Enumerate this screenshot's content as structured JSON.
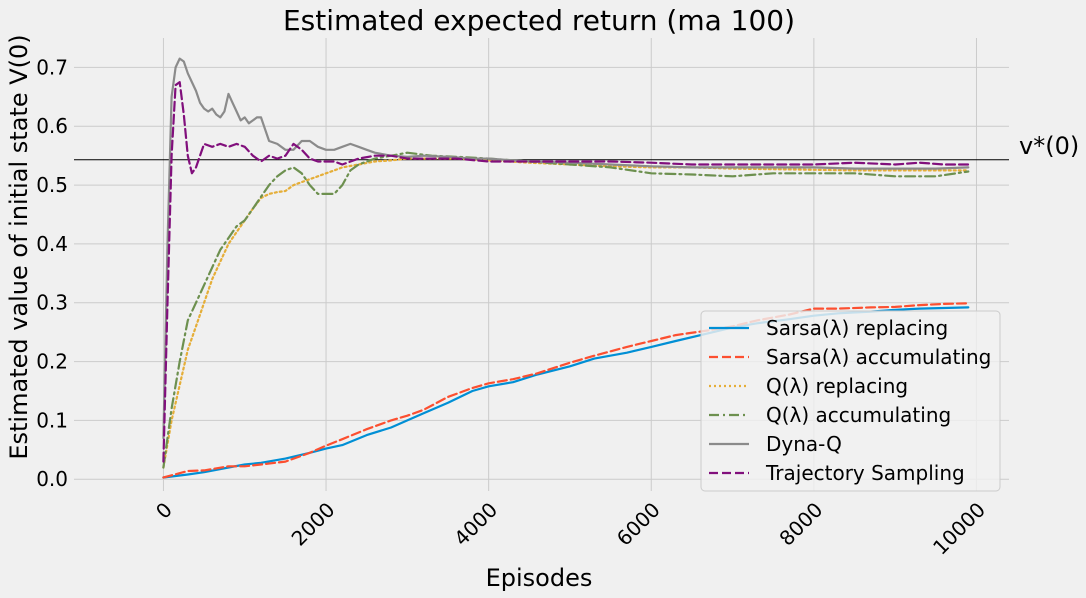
{
  "chart_data": {
    "type": "line",
    "title": "Estimated expected return (ma 100)",
    "xlabel": "Episodes",
    "ylabel": "Estimated value of initial state V(0)",
    "xlim": [
      -1100,
      10400
    ],
    "ylim": [
      -0.02,
      0.75
    ],
    "xticks": [
      0,
      2000,
      4000,
      6000,
      8000,
      10000
    ],
    "xtick_labels": [
      "0",
      "2000",
      "4000",
      "6000",
      "8000",
      "10000"
    ],
    "yticks": [
      0.0,
      0.1,
      0.2,
      0.3,
      0.4,
      0.5,
      0.6,
      0.7
    ],
    "ytick_labels": [
      "0.0",
      "0.1",
      "0.2",
      "0.3",
      "0.4",
      "0.5",
      "0.6",
      "0.7"
    ],
    "grid": true,
    "legend_position": "lower-right",
    "reference_line": {
      "label": "v*(0)",
      "y": 0.543
    },
    "series": [
      {
        "name": "Sarsa(λ) replacing",
        "color": "#008fd5",
        "dash": "solid",
        "x": [
          0,
          300,
          500,
          800,
          1000,
          1200,
          1500,
          1800,
          2000,
          2200,
          2500,
          2800,
          3000,
          3200,
          3500,
          3800,
          4000,
          4300,
          4600,
          5000,
          5300,
          5700,
          6000,
          6300,
          6700,
          7000,
          7300,
          7700,
          8000,
          8300,
          8700,
          9000,
          9300,
          9600,
          9900
        ],
        "y": [
          0.003,
          0.008,
          0.012,
          0.02,
          0.025,
          0.028,
          0.035,
          0.045,
          0.052,
          0.058,
          0.075,
          0.088,
          0.1,
          0.112,
          0.13,
          0.15,
          0.158,
          0.165,
          0.178,
          0.192,
          0.205,
          0.215,
          0.225,
          0.235,
          0.248,
          0.258,
          0.265,
          0.272,
          0.278,
          0.282,
          0.285,
          0.288,
          0.29,
          0.291,
          0.292
        ]
      },
      {
        "name": "Sarsa(λ) accumulating",
        "color": "#fc4f30",
        "dash": "dashed",
        "x": [
          0,
          300,
          500,
          800,
          1000,
          1200,
          1500,
          1800,
          2000,
          2200,
          2500,
          2800,
          3000,
          3200,
          3500,
          3800,
          4000,
          4300,
          4600,
          5000,
          5300,
          5700,
          6000,
          6300,
          6700,
          7000,
          7300,
          7700,
          8000,
          8300,
          8700,
          9000,
          9300,
          9600,
          9900
        ],
        "y": [
          0.003,
          0.014,
          0.015,
          0.022,
          0.022,
          0.025,
          0.03,
          0.045,
          0.057,
          0.068,
          0.085,
          0.1,
          0.108,
          0.118,
          0.14,
          0.155,
          0.163,
          0.17,
          0.18,
          0.198,
          0.21,
          0.225,
          0.235,
          0.245,
          0.253,
          0.26,
          0.27,
          0.28,
          0.29,
          0.29,
          0.292,
          0.293,
          0.296,
          0.298,
          0.299
        ]
      },
      {
        "name": "Q(λ) replacing",
        "color": "#e5ae38",
        "dash": "dotted",
        "x": [
          0,
          100,
          200,
          300,
          400,
          500,
          600,
          700,
          800,
          900,
          1000,
          1100,
          1200,
          1300,
          1400,
          1500,
          1600,
          1700,
          1800,
          1900,
          2000,
          2100,
          2200,
          2400,
          2600,
          2800,
          3000,
          3300,
          3600,
          4000,
          4500,
          5000,
          5500,
          6000,
          6500,
          7000,
          7500,
          8000,
          8500,
          9000,
          9500,
          9900
        ],
        "y": [
          0.02,
          0.1,
          0.16,
          0.22,
          0.26,
          0.3,
          0.34,
          0.37,
          0.4,
          0.42,
          0.44,
          0.46,
          0.478,
          0.485,
          0.488,
          0.49,
          0.5,
          0.505,
          0.51,
          0.515,
          0.52,
          0.525,
          0.53,
          0.535,
          0.54,
          0.542,
          0.545,
          0.545,
          0.545,
          0.542,
          0.538,
          0.535,
          0.532,
          0.53,
          0.53,
          0.528,
          0.527,
          0.526,
          0.525,
          0.525,
          0.525,
          0.525
        ]
      },
      {
        "name": "Q(λ) accumulating",
        "color": "#6d904f",
        "dash": "dashdot",
        "x": [
          0,
          100,
          200,
          300,
          400,
          500,
          600,
          700,
          800,
          900,
          1000,
          1100,
          1200,
          1300,
          1400,
          1500,
          1600,
          1700,
          1800,
          1900,
          2000,
          2100,
          2200,
          2300,
          2400,
          2600,
          2800,
          3000,
          3300,
          3600,
          4000,
          4500,
          5000,
          5500,
          6000,
          6500,
          7000,
          7500,
          8000,
          8500,
          9000,
          9500,
          9900
        ],
        "y": [
          0.02,
          0.12,
          0.2,
          0.27,
          0.3,
          0.33,
          0.36,
          0.39,
          0.41,
          0.43,
          0.44,
          0.46,
          0.48,
          0.5,
          0.515,
          0.525,
          0.53,
          0.52,
          0.5,
          0.485,
          0.485,
          0.485,
          0.5,
          0.525,
          0.535,
          0.545,
          0.55,
          0.555,
          0.55,
          0.548,
          0.545,
          0.54,
          0.535,
          0.53,
          0.52,
          0.518,
          0.515,
          0.52,
          0.52,
          0.52,
          0.515,
          0.515,
          0.523
        ]
      },
      {
        "name": "Dyna-Q",
        "color": "#8b8b8b",
        "dash": "solid",
        "x": [
          0,
          50,
          100,
          150,
          200,
          250,
          300,
          350,
          400,
          450,
          500,
          550,
          600,
          650,
          700,
          750,
          800,
          850,
          900,
          950,
          1000,
          1050,
          1100,
          1150,
          1200,
          1300,
          1400,
          1500,
          1600,
          1700,
          1800,
          1900,
          2000,
          2100,
          2200,
          2300,
          2400,
          2500,
          2600,
          2800,
          3000,
          3200,
          3500,
          3800,
          4000,
          4500,
          5000,
          5500,
          6000,
          6500,
          7000,
          7500,
          8000,
          8500,
          9000,
          9500,
          9900
        ],
        "y": [
          0.07,
          0.4,
          0.65,
          0.7,
          0.715,
          0.71,
          0.69,
          0.675,
          0.66,
          0.64,
          0.63,
          0.625,
          0.63,
          0.62,
          0.615,
          0.625,
          0.655,
          0.64,
          0.625,
          0.61,
          0.615,
          0.605,
          0.61,
          0.615,
          0.615,
          0.575,
          0.57,
          0.56,
          0.56,
          0.575,
          0.575,
          0.565,
          0.56,
          0.56,
          0.565,
          0.57,
          0.565,
          0.56,
          0.555,
          0.55,
          0.548,
          0.55,
          0.548,
          0.545,
          0.545,
          0.54,
          0.538,
          0.535,
          0.532,
          0.53,
          0.53,
          0.53,
          0.53,
          0.528,
          0.528,
          0.528,
          0.53
        ]
      },
      {
        "name": "Trajectory Sampling",
        "color": "#810f7c",
        "dash": "dashed",
        "x": [
          0,
          50,
          100,
          150,
          200,
          250,
          300,
          350,
          400,
          450,
          500,
          600,
          700,
          800,
          900,
          1000,
          1100,
          1200,
          1300,
          1400,
          1500,
          1600,
          1700,
          1800,
          1900,
          2000,
          2100,
          2200,
          2400,
          2600,
          2800,
          3000,
          3300,
          3600,
          4000,
          4500,
          5000,
          5500,
          6000,
          6500,
          7000,
          7500,
          8000,
          8500,
          9000,
          9300,
          9600,
          9900
        ],
        "y": [
          0.03,
          0.3,
          0.55,
          0.67,
          0.675,
          0.62,
          0.55,
          0.52,
          0.53,
          0.55,
          0.57,
          0.565,
          0.57,
          0.565,
          0.57,
          0.565,
          0.55,
          0.54,
          0.55,
          0.545,
          0.55,
          0.57,
          0.56,
          0.545,
          0.54,
          0.54,
          0.54,
          0.535,
          0.545,
          0.55,
          0.55,
          0.545,
          0.545,
          0.545,
          0.54,
          0.54,
          0.54,
          0.54,
          0.538,
          0.535,
          0.535,
          0.535,
          0.535,
          0.538,
          0.535,
          0.538,
          0.535,
          0.535
        ]
      }
    ]
  }
}
